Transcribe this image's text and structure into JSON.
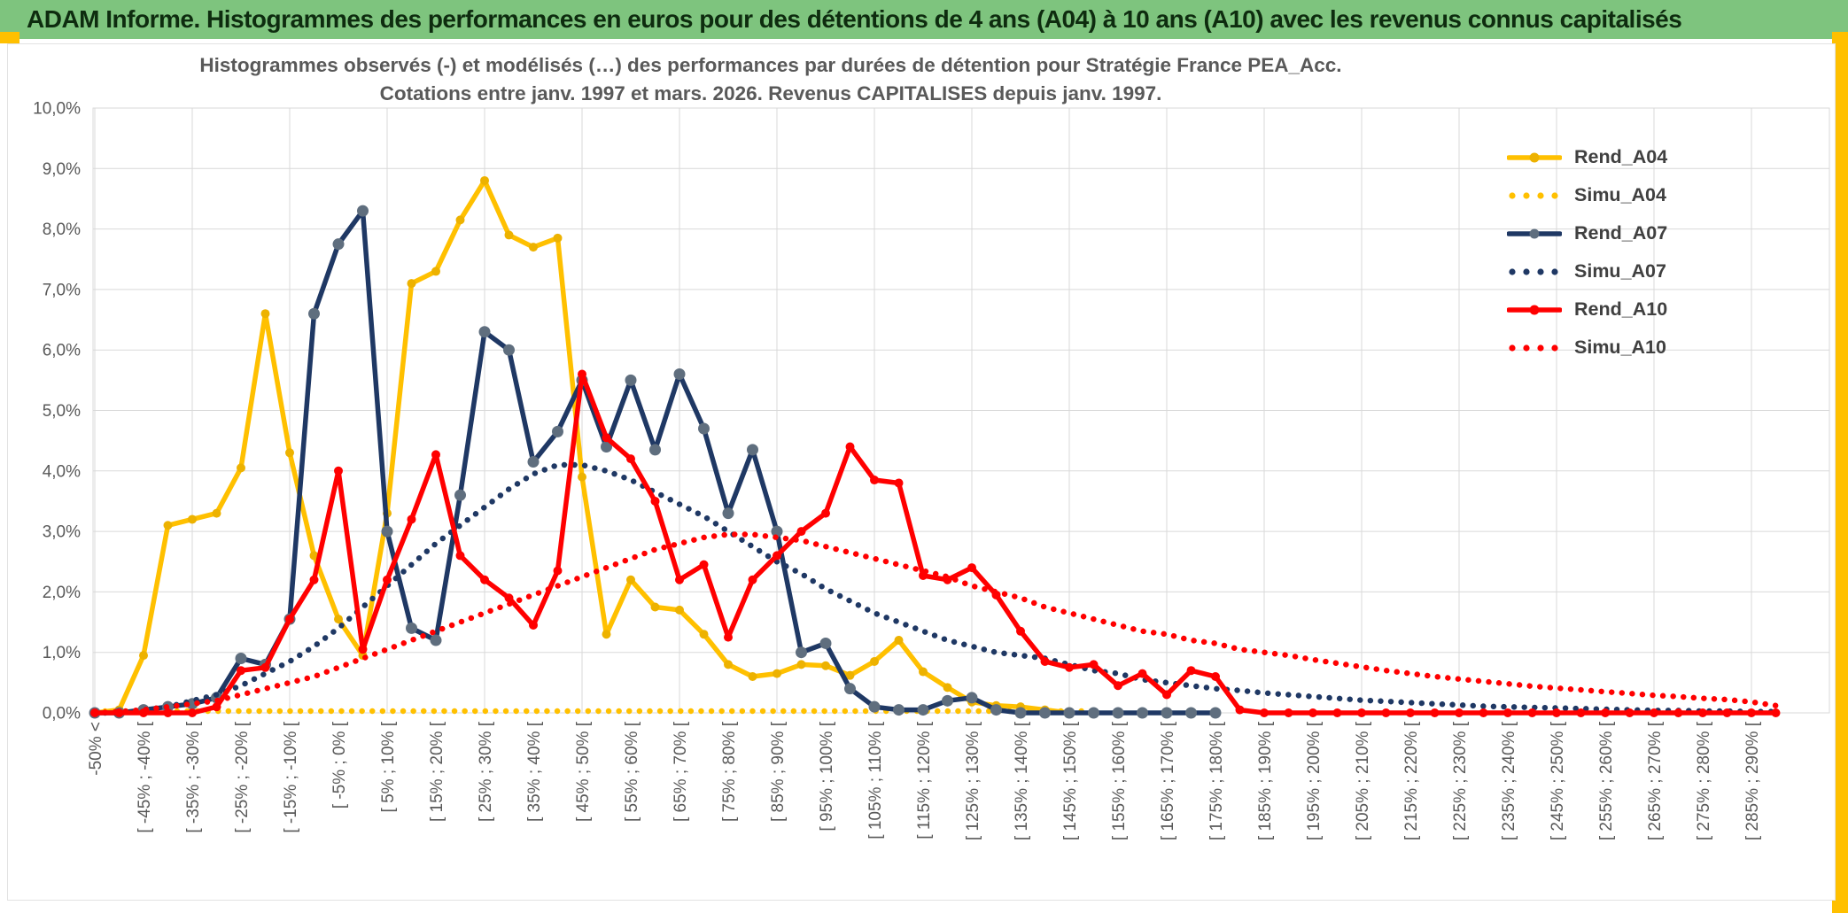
{
  "banner": {
    "title": "ADAM Informe. Histogrammes des performances en euros pour des détentions de 4 ans (A04) à 10 ans (A10) avec les revenus connus capitalisés"
  },
  "chart": {
    "title_line1": "Histogrammes observés (-) et modélisés (…) des performances par durées de détention pour Stratégie France PEA_Acc.",
    "title_line2": "Cotations entre janv. 1997 et mars. 2026. Revenus CAPITALISES depuis janv. 1997."
  },
  "chart_data": {
    "type": "line",
    "title": "Histogrammes observés (-) et modélisés (…) des performances par durées de détention pour Stratégie France PEA_Acc.",
    "subtitle": "Cotations entre janv. 1997 et mars. 2026. Revenus CAPITALISES depuis janv. 1997.",
    "grid": true,
    "legend_position": "right-inside",
    "ylim_percent": [
      0,
      10
    ],
    "y_tick_labels": [
      "0,0%",
      "1,0%",
      "2,0%",
      "3,0%",
      "4,0%",
      "5,0%",
      "6,0%",
      "7,0%",
      "8,0%",
      "9,0%",
      "10,0%"
    ],
    "categories": [
      "-50% <",
      "",
      "[ -45% ; -40% [",
      "",
      "[ -35% ; -30% [",
      "",
      "[ -25% ; -20% [",
      "",
      "[ -15% ; -10% [",
      "",
      "[ -5% ; 0% [",
      "",
      "[ 5% ; 10% [",
      "",
      "[ 15% ; 20% [",
      "",
      "[ 25% ; 30% [",
      "",
      "[ 35% ; 40% [",
      "",
      "[ 45% ; 50% [",
      "",
      "[ 55% ; 60% [",
      "",
      "[ 65% ; 70% [",
      "",
      "[ 75% ; 80% [",
      "",
      "[ 85% ; 90% [",
      "",
      "[ 95% ; 100% [",
      "",
      "[ 105% ; 110% [",
      "",
      "[ 115% ; 120% [",
      "",
      "[ 125% ; 130% [",
      "",
      "[ 135% ; 140% [",
      "",
      "[ 145% ; 150% [",
      "",
      "[ 155% ; 160% [",
      "",
      "[ 165% ; 170% [",
      "",
      "[ 175% ; 180% [",
      "",
      "[ 185% ; 190% [",
      "",
      "[ 195% ; 200% [",
      "",
      "[ 205% ; 210% [",
      "",
      "[ 215% ; 220% [",
      "",
      "[ 225% ; 230% [",
      "",
      "[ 235% ; 240% [",
      "",
      "[ 245% ; 250% [",
      "",
      "[ 255% ; 260% [",
      "",
      "[ 265% ; 270% [",
      "",
      "[ 275% ; 280% [",
      "",
      "[ 285% ; 290% [",
      ""
    ],
    "series": [
      {
        "name": "Rend_A04",
        "style": "solid",
        "color": "#FFC000",
        "marker_color": "#EDB200",
        "values": [
          0,
          0.05,
          0.95,
          3.1,
          3.2,
          3.3,
          4.05,
          6.6,
          4.3,
          2.6,
          1.55,
          0.95,
          3.3,
          7.1,
          7.3,
          8.15,
          8.8,
          7.9,
          7.7,
          7.85,
          3.9,
          1.3,
          2.2,
          1.75,
          1.7,
          1.3,
          0.8,
          0.6,
          0.65,
          0.8,
          0.78,
          0.62,
          0.85,
          1.2,
          0.68,
          0.42,
          0.18,
          0.12,
          0.1,
          0.05,
          0,
          null,
          null,
          null,
          null,
          null,
          null,
          null,
          null,
          null,
          null,
          null,
          null,
          null,
          null,
          null,
          null,
          null,
          null,
          null,
          null,
          null,
          null,
          null,
          null,
          null,
          null,
          null,
          null,
          null
        ]
      },
      {
        "name": "Simu_A04",
        "style": "dotted",
        "color": "#FFC000",
        "marker_color": "#FFC000",
        "values": [
          0.03,
          0.03,
          0.03,
          0.03,
          0.03,
          0.03,
          0.03,
          0.03,
          0.03,
          0.03,
          0.03,
          0.03,
          0.03,
          0.03,
          0.03,
          0.03,
          0.03,
          0.03,
          0.03,
          0.03,
          0.03,
          0.03,
          0.03,
          0.03,
          0.03,
          0.03,
          0.03,
          0.03,
          0.03,
          0.03,
          0.03,
          0.03,
          0.03,
          0.03,
          0.03,
          0.03,
          0.03,
          0.03,
          0.03,
          0.03,
          0.03,
          0.03,
          null,
          null,
          null,
          null,
          null,
          null,
          null,
          null,
          null,
          null,
          null,
          null,
          null,
          null,
          null,
          null,
          null,
          null,
          null,
          null,
          null,
          null,
          null,
          null,
          null,
          null,
          null,
          null
        ]
      },
      {
        "name": "Rend_A07",
        "style": "solid",
        "color": "#1F3864",
        "marker_color": "#5F6E7E",
        "values": [
          0,
          0,
          0.05,
          0.1,
          0.15,
          0.25,
          0.9,
          0.8,
          1.55,
          6.6,
          7.75,
          8.3,
          3.0,
          1.4,
          1.2,
          3.6,
          6.3,
          6.0,
          4.15,
          4.65,
          5.5,
          4.4,
          5.5,
          4.35,
          5.6,
          4.7,
          3.3,
          4.35,
          3.0,
          1.0,
          1.15,
          0.4,
          0.1,
          0.05,
          0.05,
          0.2,
          0.25,
          0.05,
          0,
          0,
          0,
          0,
          0,
          0,
          0,
          0,
          0,
          null,
          null,
          null,
          null,
          null,
          null,
          null,
          null,
          null,
          null,
          null,
          null,
          null,
          null,
          null,
          null,
          null,
          null,
          null,
          null,
          null,
          null,
          null
        ]
      },
      {
        "name": "Simu_A07",
        "style": "dotted",
        "color": "#1F3864",
        "marker_color": "#1F3864",
        "values": [
          0,
          0,
          0.05,
          0.1,
          0.2,
          0.3,
          0.45,
          0.65,
          0.85,
          1.1,
          1.4,
          1.75,
          2.1,
          2.45,
          2.8,
          3.1,
          3.4,
          3.7,
          3.95,
          4.1,
          4.1,
          4.0,
          3.85,
          3.65,
          3.45,
          3.25,
          3.0,
          2.75,
          2.5,
          2.3,
          2.05,
          1.85,
          1.65,
          1.5,
          1.35,
          1.2,
          1.1,
          1.0,
          0.95,
          0.9,
          0.8,
          0.7,
          0.65,
          0.55,
          0.5,
          0.45,
          0.4,
          0.37,
          0.33,
          0.3,
          0.27,
          0.24,
          0.21,
          0.19,
          0.17,
          0.15,
          0.13,
          0.11,
          0.1,
          0.09,
          0.08,
          0.07,
          0.06,
          0.05,
          0.04,
          0.04,
          0.03,
          0.03,
          0.02,
          0.02
        ]
      },
      {
        "name": "Rend_A10",
        "style": "solid",
        "color": "#FF0000",
        "marker_color": "#FF0000",
        "values": [
          0,
          0,
          0,
          0,
          0,
          0.1,
          0.7,
          0.75,
          1.55,
          2.2,
          4.0,
          1.05,
          2.2,
          3.2,
          4.27,
          2.6,
          2.2,
          1.9,
          1.45,
          2.35,
          5.6,
          4.55,
          4.2,
          3.5,
          2.2,
          2.45,
          1.25,
          2.2,
          2.6,
          3.0,
          3.3,
          4.4,
          3.85,
          3.8,
          2.27,
          2.2,
          2.4,
          1.95,
          1.35,
          0.85,
          0.75,
          0.8,
          0.45,
          0.65,
          0.3,
          0.7,
          0.6,
          0.05,
          0,
          0,
          0,
          0,
          0,
          0,
          0,
          0,
          0,
          0,
          0,
          0,
          0,
          0,
          0,
          0,
          0,
          0,
          0,
          0,
          0,
          0
        ]
      },
      {
        "name": "Simu_A10",
        "style": "dotted",
        "color": "#FF0000",
        "marker_color": "#FF0000",
        "values": [
          0,
          0.02,
          0.05,
          0.1,
          0.15,
          0.2,
          0.3,
          0.4,
          0.5,
          0.6,
          0.75,
          0.9,
          1.05,
          1.2,
          1.35,
          1.5,
          1.65,
          1.8,
          1.95,
          2.1,
          2.25,
          2.4,
          2.55,
          2.7,
          2.8,
          2.9,
          2.95,
          2.95,
          2.9,
          2.85,
          2.75,
          2.65,
          2.55,
          2.45,
          2.35,
          2.25,
          2.1,
          2.0,
          1.9,
          1.75,
          1.65,
          1.55,
          1.45,
          1.35,
          1.3,
          1.2,
          1.15,
          1.05,
          1.0,
          0.95,
          0.88,
          0.82,
          0.76,
          0.7,
          0.65,
          0.6,
          0.56,
          0.52,
          0.48,
          0.44,
          0.41,
          0.38,
          0.35,
          0.32,
          0.29,
          0.27,
          0.24,
          0.22,
          0.18,
          0.12
        ]
      }
    ]
  }
}
